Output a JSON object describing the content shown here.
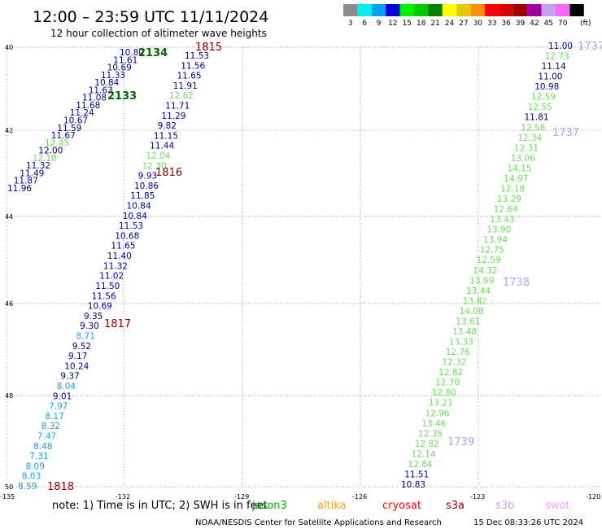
{
  "header": {
    "title": "12:00 – 23:59 UTC 11/11/2024",
    "subtitle": "12 hour collection of altimeter wave heights"
  },
  "legend": {
    "bins": [
      {
        "label": "3",
        "color": "#8c8c8c"
      },
      {
        "label": "6",
        "color": "#00f0f0"
      },
      {
        "label": "9",
        "color": "#00a0f5"
      },
      {
        "label": "12",
        "color": "#0000d8"
      },
      {
        "label": "15",
        "color": "#00f000"
      },
      {
        "label": "18",
        "color": "#00c800"
      },
      {
        "label": "21",
        "color": "#008000"
      },
      {
        "label": "24",
        "color": "#ffff00"
      },
      {
        "label": "27",
        "color": "#e6c800"
      },
      {
        "label": "30",
        "color": "#ff9000"
      },
      {
        "label": "33",
        "color": "#ff0000"
      },
      {
        "label": "36",
        "color": "#d60000"
      },
      {
        "label": "39",
        "color": "#a00000"
      },
      {
        "label": "42",
        "color": "#a000a0"
      },
      {
        "label": "45",
        "color": "#c8a0f0"
      },
      {
        "label": "70",
        "color": "#ff66ff"
      },
      {
        "label": "",
        "color": "#000000"
      }
    ],
    "unit": "(ft)"
  },
  "axes": {
    "x_ticks": [
      "-135",
      "-132",
      "-129",
      "-126",
      "-123",
      "-120"
    ],
    "y_ticks": [
      "40",
      "42",
      "44",
      "46",
      "48",
      "50"
    ]
  },
  "footer": {
    "note": "note: 1) Time is in UTC; 2) SWH is in feet",
    "satellites": [
      {
        "name": "jason3",
        "color": "#00aa00"
      },
      {
        "name": "altika",
        "color": "#ff9900"
      },
      {
        "name": "cryosat",
        "color": "#ff0000"
      },
      {
        "name": "s3a",
        "color": "#990000"
      },
      {
        "name": "s3b",
        "color": "#c8a0f0"
      },
      {
        "name": "swot",
        "color": "#ff99ff"
      }
    ],
    "credit": "NOAA/NESDIS Center for Satellite Applications and Research",
    "timestamp": "15 Dec 08:33:26 UTC 2024"
  },
  "colors": {
    "c1": "#00008b",
    "c2": "#1ea0dc",
    "c3": "#66dd55",
    "time_s3a": "#8b0000",
    "time_jason3": "#006400",
    "time_s3b": "#b4a0ee",
    "grid": "#999999"
  },
  "track_times": [
    {
      "label": "1815",
      "color": "time_s3a"
    },
    {
      "label": "2134",
      "color": "time_jason3"
    },
    {
      "label": "2133",
      "color": "time_jason3"
    },
    {
      "label": "1816",
      "color": "time_s3a"
    },
    {
      "label": "1817",
      "color": "time_s3a"
    },
    {
      "label": "1818",
      "color": "time_s3a"
    },
    {
      "label": "1737",
      "color": "time_s3b"
    },
    {
      "label": "1737",
      "color": "time_s3b"
    },
    {
      "label": "1738",
      "color": "time_s3b"
    },
    {
      "label": "1739",
      "color": "time_s3b"
    }
  ],
  "tracks": {
    "jason3": [
      {
        "v": "10.80",
        "c": "c1"
      },
      {
        "v": "11.61",
        "c": "c1"
      },
      {
        "v": "10.69",
        "c": "c1"
      },
      {
        "v": "11.33",
        "c": "c1"
      },
      {
        "v": "10.84",
        "c": "c1"
      },
      {
        "v": "11.63",
        "c": "c1"
      },
      {
        "v": "11.08",
        "c": "c1"
      },
      {
        "v": "11.68",
        "c": "c1"
      },
      {
        "v": "11.24",
        "c": "c1"
      },
      {
        "v": "10.67",
        "c": "c1"
      },
      {
        "v": "11.59",
        "c": "c1"
      },
      {
        "v": "11.67",
        "c": "c1"
      },
      {
        "v": "12.45",
        "c": "c3"
      },
      {
        "v": "12.00",
        "c": "c1"
      },
      {
        "v": "12.10",
        "c": "c3"
      },
      {
        "v": "11.32",
        "c": "c1"
      },
      {
        "v": "11.49",
        "c": "c1"
      },
      {
        "v": "11.87",
        "c": "c1"
      },
      {
        "v": "11.96",
        "c": "c1"
      }
    ],
    "s3a": [
      {
        "v": "11.53",
        "c": "c1"
      },
      {
        "v": "11.56",
        "c": "c1"
      },
      {
        "v": "11.65",
        "c": "c1"
      },
      {
        "v": "11.91",
        "c": "c1"
      },
      {
        "v": "12.62",
        "c": "c3"
      },
      {
        "v": "11.71",
        "c": "c1"
      },
      {
        "v": "11.29",
        "c": "c1"
      },
      {
        "v": "9.82",
        "c": "c1"
      },
      {
        "v": "11.15",
        "c": "c1"
      },
      {
        "v": "11.44",
        "c": "c1"
      },
      {
        "v": "12.04",
        "c": "c3"
      },
      {
        "v": "12.30",
        "c": "c3"
      },
      {
        "v": "9.93",
        "c": "c1"
      },
      {
        "v": "10.86",
        "c": "c1"
      },
      {
        "v": "11.85",
        "c": "c1"
      },
      {
        "v": "10.84",
        "c": "c1"
      },
      {
        "v": "10.84",
        "c": "c1"
      },
      {
        "v": "11.53",
        "c": "c1"
      },
      {
        "v": "10.68",
        "c": "c1"
      },
      {
        "v": "11.65",
        "c": "c1"
      },
      {
        "v": "11.40",
        "c": "c1"
      },
      {
        "v": "11.32",
        "c": "c1"
      },
      {
        "v": "11.02",
        "c": "c1"
      },
      {
        "v": "11.50",
        "c": "c1"
      },
      {
        "v": "11.56",
        "c": "c1"
      },
      {
        "v": "10.69",
        "c": "c1"
      },
      {
        "v": "9.35",
        "c": "c1"
      },
      {
        "v": "9.30",
        "c": "c1"
      },
      {
        "v": "8.71",
        "c": "c2"
      },
      {
        "v": "9.52",
        "c": "c1"
      },
      {
        "v": "9.17",
        "c": "c1"
      },
      {
        "v": "10.24",
        "c": "c1"
      },
      {
        "v": "9.37",
        "c": "c1"
      },
      {
        "v": "8.04",
        "c": "c2"
      },
      {
        "v": "9.01",
        "c": "c1"
      },
      {
        "v": "7.97",
        "c": "c2"
      },
      {
        "v": "8.17",
        "c": "c2"
      },
      {
        "v": "8.32",
        "c": "c2"
      },
      {
        "v": "7.47",
        "c": "c2"
      },
      {
        "v": "8.48",
        "c": "c2"
      },
      {
        "v": "7.31",
        "c": "c2"
      },
      {
        "v": "8.09",
        "c": "c2"
      },
      {
        "v": "8.03",
        "c": "c2"
      },
      {
        "v": "8.59",
        "c": "c2"
      }
    ],
    "s3b": [
      {
        "v": "11.00",
        "c": "c1"
      },
      {
        "v": "12.73",
        "c": "c3"
      },
      {
        "v": "11.14",
        "c": "c1"
      },
      {
        "v": "11.00",
        "c": "c1"
      },
      {
        "v": "10.98",
        "c": "c1"
      },
      {
        "v": "12.59",
        "c": "c3"
      },
      {
        "v": "12.55",
        "c": "c3"
      },
      {
        "v": "11.81",
        "c": "c1"
      },
      {
        "v": "12.58",
        "c": "c3"
      },
      {
        "v": "12.34",
        "c": "c3"
      },
      {
        "v": "12.31",
        "c": "c3"
      },
      {
        "v": "13.06",
        "c": "c3"
      },
      {
        "v": "14.15",
        "c": "c3"
      },
      {
        "v": "14.97",
        "c": "c3"
      },
      {
        "v": "12.18",
        "c": "c3"
      },
      {
        "v": "13.29",
        "c": "c3"
      },
      {
        "v": "12.64",
        "c": "c3"
      },
      {
        "v": "13.43",
        "c": "c3"
      },
      {
        "v": "13.90",
        "c": "c3"
      },
      {
        "v": "13.94",
        "c": "c3"
      },
      {
        "v": "12.75",
        "c": "c3"
      },
      {
        "v": "12.59",
        "c": "c3"
      },
      {
        "v": "14.32",
        "c": "c3"
      },
      {
        "v": "13.99",
        "c": "c3"
      },
      {
        "v": "13.44",
        "c": "c3"
      },
      {
        "v": "13.82",
        "c": "c3"
      },
      {
        "v": "14.08",
        "c": "c3"
      },
      {
        "v": "13.61",
        "c": "c3"
      },
      {
        "v": "13.48",
        "c": "c3"
      },
      {
        "v": "13.33",
        "c": "c3"
      },
      {
        "v": "12.76",
        "c": "c3"
      },
      {
        "v": "12.32",
        "c": "c3"
      },
      {
        "v": "12.82",
        "c": "c3"
      },
      {
        "v": "12.70",
        "c": "c3"
      },
      {
        "v": "12.80",
        "c": "c3"
      },
      {
        "v": "13.21",
        "c": "c3"
      },
      {
        "v": "12.96",
        "c": "c3"
      },
      {
        "v": "13.46",
        "c": "c3"
      },
      {
        "v": "12.35",
        "c": "c3"
      },
      {
        "v": "12.82",
        "c": "c3"
      },
      {
        "v": "12.14",
        "c": "c3"
      },
      {
        "v": "12.84",
        "c": "c3"
      },
      {
        "v": "11.51",
        "c": "c1"
      },
      {
        "v": "10.83",
        "c": "c1"
      }
    ]
  }
}
